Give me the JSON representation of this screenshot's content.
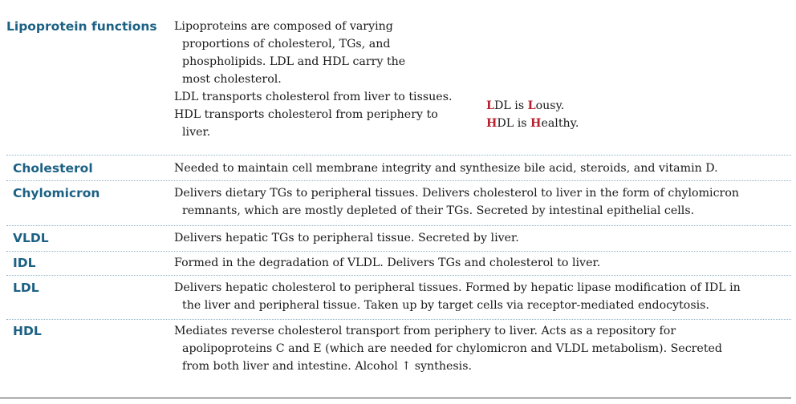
{
  "rows": [
    {
      "term": "Lipoprotein functions",
      "lines": [
        "Lipoproteins are composed of varying",
        "proportions of cholesterol, TGs, and",
        "phospholipids. LDL and HDL carry the",
        "most cholesterol.",
        "LDL transports cholesterol from liver to tissues.",
        "HDL transports cholesterol from periphery to",
        "liver."
      ],
      "mnemonics": [
        {
          "letter": "L",
          "rest": "DL is ",
          "letter2": "L",
          "rest2": "ousy."
        },
        {
          "letter": "H",
          "rest": "DL is ",
          "letter2": "H",
          "rest2": "ealthy."
        }
      ]
    },
    {
      "term": "Cholesterol",
      "lines": [
        "Needed to maintain cell membrane integrity and synthesize bile acid, steroids, and vitamin D."
      ]
    },
    {
      "term": "Chylomicron",
      "lines": [
        "Delivers dietary TGs to peripheral tissues. Delivers cholesterol to liver in the form of chylomicron",
        "remnants, which are mostly depleted of their TGs. Secreted by intestinal epithelial cells."
      ]
    },
    {
      "term": "VLDL",
      "lines": [
        "Delivers hepatic TGs to peripheral tissue. Secreted by liver."
      ]
    },
    {
      "term": "IDL",
      "lines": [
        "Formed in the degradation of VLDL. Delivers TGs and cholesterol to liver."
      ]
    },
    {
      "term": "LDL",
      "lines": [
        "Delivers hepatic cholesterol to peripheral tissues. Formed by hepatic lipase modification of IDL in",
        "the liver and peripheral tissue. Taken up by target cells via receptor-mediated endocytosis."
      ]
    },
    {
      "term": "HDL",
      "lines": [
        "Mediates reverse cholesterol transport from periphery to liver. Acts as a repository for",
        "apolipoproteins C and E (which are needed for chylomicron and VLDL metabolism). Secreted",
        "from both liver and intestine. Alcohol ↑ synthesis."
      ]
    }
  ]
}
